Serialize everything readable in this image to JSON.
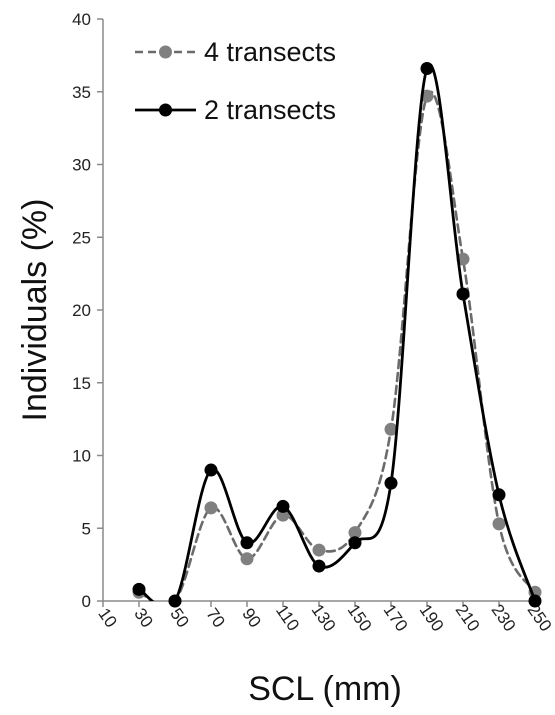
{
  "chart_data": {
    "type": "line",
    "title": "",
    "xlabel": "SCL (mm)",
    "ylabel": "Individuals (%)",
    "x": [
      10,
      30,
      50,
      70,
      90,
      110,
      130,
      150,
      170,
      190,
      210,
      230,
      250
    ],
    "x_tick_labels": [
      "10",
      "30",
      "50",
      "70",
      "90",
      "110",
      "130",
      "150",
      "170",
      "190",
      "210",
      "230",
      "250"
    ],
    "y_ticks": [
      0,
      5,
      10,
      15,
      20,
      25,
      30,
      35,
      40
    ],
    "y_tick_labels": [
      "0",
      "5",
      "10",
      "15",
      "20",
      "25",
      "30",
      "35",
      "40"
    ],
    "ylim": [
      0,
      40
    ],
    "grid": false,
    "legend_position": "top-left",
    "series": [
      {
        "name": "4 transects",
        "style": "dashed",
        "color": "#6b6b6b",
        "marker_color": "#808080",
        "points": [
          [
            30,
            0.6
          ],
          [
            50,
            0
          ],
          [
            70,
            6.4
          ],
          [
            90,
            2.9
          ],
          [
            110,
            5.9
          ],
          [
            130,
            3.5
          ],
          [
            150,
            4.7
          ],
          [
            170,
            11.8
          ],
          [
            190,
            34.7
          ],
          [
            210,
            23.5
          ],
          [
            230,
            5.3
          ],
          [
            250,
            0.6
          ]
        ]
      },
      {
        "name": "2 transects",
        "style": "solid",
        "color": "#000000",
        "marker_color": "#000000",
        "points": [
          [
            30,
            0.8
          ],
          [
            50,
            0
          ],
          [
            70,
            9.0
          ],
          [
            90,
            4.0
          ],
          [
            110,
            6.5
          ],
          [
            130,
            2.4
          ],
          [
            150,
            4.0
          ],
          [
            170,
            8.1
          ],
          [
            190,
            36.6
          ],
          [
            210,
            21.1
          ],
          [
            230,
            7.3
          ],
          [
            250,
            0
          ]
        ]
      }
    ]
  }
}
